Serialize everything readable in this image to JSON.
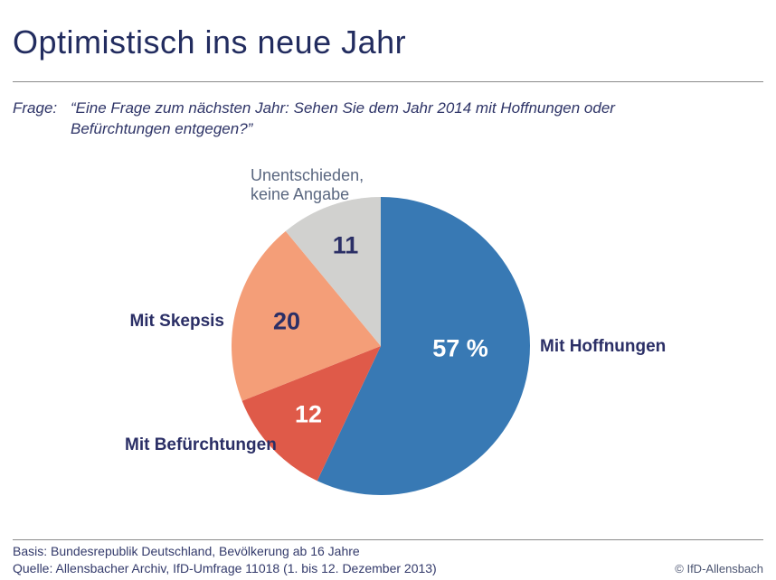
{
  "header": {
    "title": "Optimistisch ins neue Jahr"
  },
  "question": {
    "prefix": "Frage:",
    "text": "“Eine Frage zum nächsten Jahr: Sehen Sie dem Jahr 2014 mit Hoffnungen oder Befürchtungen entgegen?”"
  },
  "chart_data": {
    "type": "pie",
    "title": "Optimistisch ins neue Jahr",
    "start_angle": "12-oclock",
    "direction": "clockwise",
    "unit": "percent",
    "total": 100,
    "slices": [
      {
        "label": "Mit Hoffnungen",
        "value": 57,
        "value_label": "57 %",
        "color": "#3879b4",
        "value_label_color": "#ffffff"
      },
      {
        "label": "Mit Befürchtungen",
        "value": 12,
        "value_label": "12",
        "color": "#df5a49",
        "value_label_color": "#ffffff"
      },
      {
        "label": "Mit Skepsis",
        "value": 20,
        "value_label": "20",
        "color": "#f49e78",
        "value_label_color": "#2b2f66"
      },
      {
        "label": "Unentschieden, keine Angabe",
        "value": 11,
        "value_label": "11",
        "color": "#d1d1cf",
        "value_label_color": "#2b2f66"
      }
    ]
  },
  "footer": {
    "basis": "Basis: Bundesrepublik Deutschland, Bevölkerung ab 16 Jahre",
    "quelle": "Quelle: Allensbacher Archiv, IfD-Umfrage 11018 (1. bis 12. Dezember 2013)",
    "copyright": "© IfD-Allensbach"
  },
  "colors": {
    "title_navy": "#222c5f",
    "label_navy": "#2b2f66",
    "muted_label": "#5a6780",
    "footer_navy": "#333a6b",
    "rule_gray": "#8a8a8a",
    "background": "#ffffff"
  }
}
